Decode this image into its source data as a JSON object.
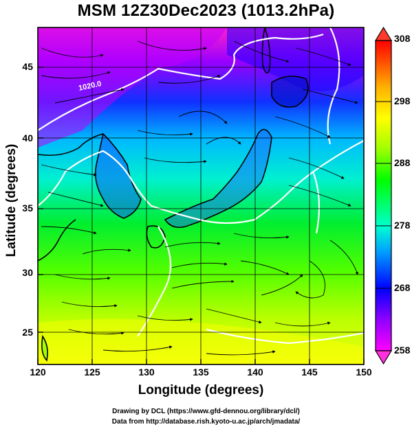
{
  "title": "MSM 12Z30Dec2023 (1013.2hPa)",
  "map": {
    "lon_range": [
      120,
      150
    ],
    "lat_range": [
      22.5,
      48
    ],
    "x_ticks": [
      "120",
      "125",
      "130",
      "135",
      "140",
      "145",
      "150"
    ],
    "y_ticks": [
      "25",
      "30",
      "35",
      "40",
      "45"
    ],
    "xlabel": "Longitude (degrees)",
    "ylabel": "Latitude  (degrees)",
    "contour_label": "1020.0",
    "gridlines": true,
    "field": "temperature shading with wind streamlines and white pressure contours"
  },
  "colorbar": {
    "ticks": [
      "308",
      "298",
      "288",
      "278",
      "268",
      "258"
    ],
    "min": 258,
    "max": 308,
    "colors": [
      "#ff00ff",
      "#9000ff",
      "#0000ff",
      "#00c0ff",
      "#00ffd0",
      "#00ff00",
      "#a0ff00",
      "#ffff00",
      "#ffb000",
      "#ff5000",
      "#ff0000"
    ]
  },
  "credits": {
    "line1": "Drawing by DCL (https://www.gfd-dennou.org/library/dcl/)",
    "line2": "Data from http://database.rish.kyoto-u.ac.jp/arch/jmadata/"
  }
}
